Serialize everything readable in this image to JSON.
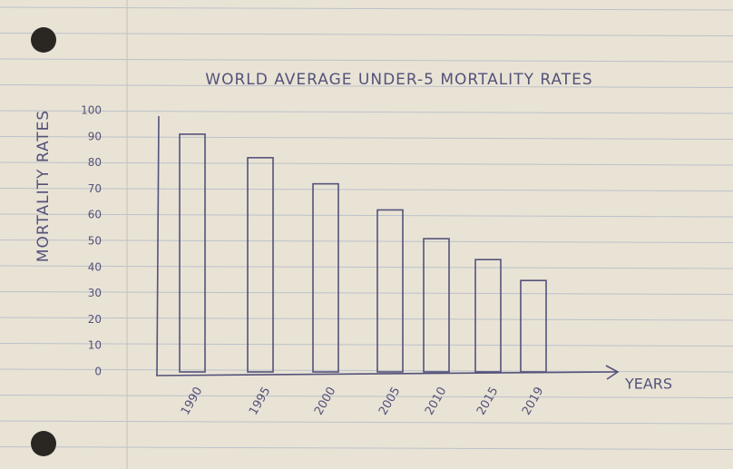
{
  "chart_data": {
    "type": "bar",
    "title": "WORLD AVERAGE UNDER-5 MORTALITY RATES",
    "y_label": "MORTALITY RATES",
    "x_label": "YEARS",
    "categories": [
      "1990",
      "1995",
      "2000",
      "2005",
      "2010",
      "2015",
      "2019"
    ],
    "values": [
      91,
      82,
      72,
      62,
      51,
      43,
      35
    ],
    "color": "#55527a",
    "ylim": [
      0,
      100
    ],
    "yticks": [
      0,
      10,
      20,
      30,
      40,
      50,
      60,
      70,
      80,
      90,
      100
    ],
    "grid": false
  }
}
